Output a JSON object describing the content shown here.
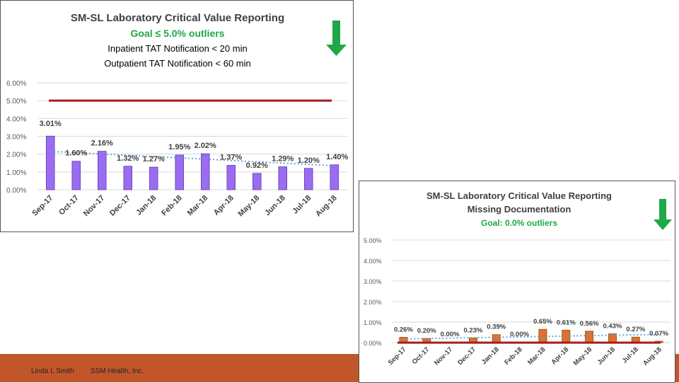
{
  "footer": {
    "author": "Linda L Smith",
    "org": "SSM Health, Inc."
  },
  "colors": {
    "bar1": "#9b6cf2",
    "bar2": "#e0712c",
    "goal_line": "#a41d1d",
    "trend": "#5a9bd5",
    "green": "#1ea848",
    "footer": "#c0562a"
  },
  "chart_data": [
    {
      "type": "bar",
      "title": "SM-SL Laboratory Critical Value Reporting",
      "subtitle": "Goal ≤ 5.0% outliers",
      "notes": [
        "Inpatient TAT Notification < 20 min",
        "Outpatient TAT Notification < 60 min"
      ],
      "goal_arrow_icon": "down-arrow-icon",
      "categories": [
        "Sep-17",
        "Oct-17",
        "Nov-17",
        "Dec-17",
        "Jan-18",
        "Feb-18",
        "Mar-18",
        "Apr-18",
        "May-18",
        "Jun-18",
        "Jul-18",
        "Aug-18"
      ],
      "values": [
        3.01,
        1.6,
        2.16,
        1.32,
        1.27,
        1.95,
        2.02,
        1.37,
        0.92,
        1.29,
        1.2,
        1.4
      ],
      "data_labels": [
        "3.01%",
        "1.60%",
        "2.16%",
        "1.32%",
        "1.27%",
        "1.95%",
        "2.02%",
        "1.37%",
        "0.92%",
        "1.29%",
        "1.20%",
        "1.40%"
      ],
      "y_ticks": [
        0,
        1,
        2,
        3,
        4,
        5,
        6
      ],
      "y_tick_labels": [
        "0.00%",
        "1.00%",
        "2.00%",
        "3.00%",
        "4.00%",
        "5.00%",
        "6.00%"
      ],
      "ylim": [
        0,
        6
      ],
      "goal": 5.0,
      "trendline": [
        2.15,
        1.35
      ],
      "xlabel": "",
      "ylabel": ""
    },
    {
      "type": "bar",
      "title": "SM-SL Laboratory Critical Value Reporting",
      "subtitle": "Missing Documentation",
      "notes": [
        "Goal:  0.0% outliers"
      ],
      "goal_arrow_icon": "down-arrow-icon",
      "categories": [
        "Sep-17",
        "Oct-17",
        "Nov-17",
        "Dec-17",
        "Jan-18",
        "Feb-18",
        "Mar-18",
        "Apr-18",
        "May-18",
        "Jun-18",
        "Jul-18",
        "Aug-18"
      ],
      "values": [
        0.26,
        0.2,
        0.0,
        0.23,
        0.39,
        0.0,
        0.65,
        0.61,
        0.56,
        0.43,
        0.27,
        0.07
      ],
      "data_labels": [
        "0.26%",
        "0.20%",
        "0.00%",
        "0.23%",
        "0.39%",
        "0.00%",
        "0.65%",
        "0.61%",
        "0.56%",
        "0.43%",
        "0.27%",
        "0.07%"
      ],
      "y_ticks": [
        0,
        1,
        2,
        3,
        4,
        5
      ],
      "y_tick_labels": [
        "0.00%",
        "1.00%",
        "2.00%",
        "3.00%",
        "4.00%",
        "5.00%"
      ],
      "ylim": [
        0,
        5
      ],
      "goal": 0.0,
      "trendline": [
        0.18,
        0.4
      ],
      "xlabel": "",
      "ylabel": ""
    }
  ]
}
